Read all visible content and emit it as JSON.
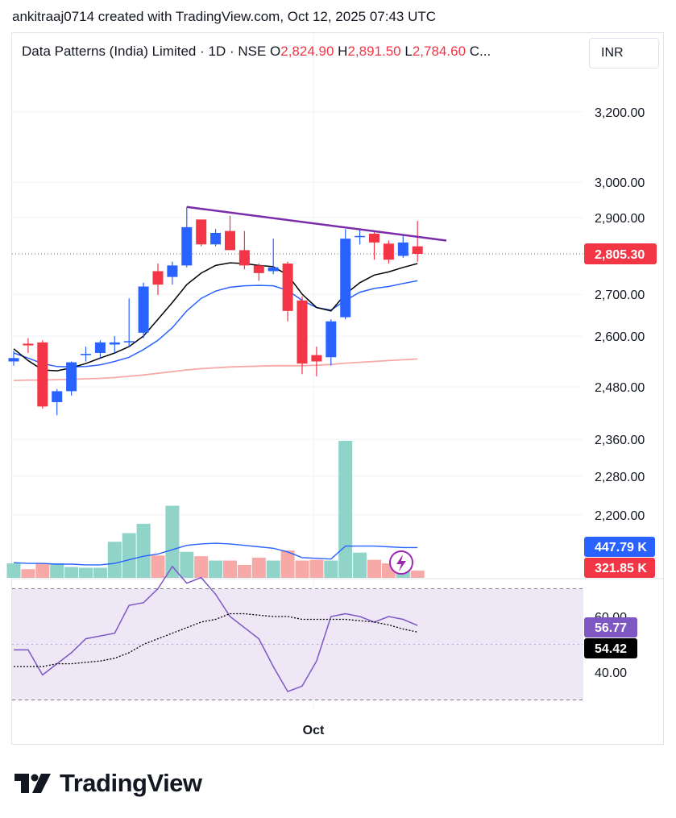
{
  "header": {
    "credit": "ankitraaj0714 created with TradingView.com, Oct 12, 2025 07:43 UTC"
  },
  "legend": {
    "symbol": "Data Patterns (India) Limited · 1D · NSE",
    "o_label": "O",
    "o_value": "2,824.90",
    "h_label": "H",
    "h_value": "2,891.50",
    "l_label": "L",
    "l_value": "2,784.60",
    "c_label": "C..."
  },
  "currency": "INR",
  "brand": {
    "name": "TradingView",
    "logo_icon": "tradingview-logo-icon"
  },
  "colors": {
    "up": "#2962ff",
    "down": "#f23645",
    "ema_short": "#000000",
    "ema_mid": "#2962ff",
    "ema_long": "#f7a9a7",
    "trendline": "#7b2ca8",
    "vol_up": "#8fd3c9",
    "vol_down": "#f7a9a7",
    "vol_ma": "#2962ff",
    "rsi": "#7e57c2",
    "rsi_ma": "#000000",
    "rsi_band": "#ede7f6"
  },
  "chart_data": [
    {
      "type": "candlestick",
      "x_label": "Oct",
      "price_ticks": [
        3200,
        3000,
        2900,
        2700,
        2600,
        2480,
        2360,
        2280,
        2200
      ],
      "price_tick_labels": [
        "3,200.00",
        "3,000.00",
        "2,900.00",
        "2,700.00",
        "2,600.00",
        "2,480.00",
        "2,360.00",
        "2,280.00",
        "2,200.00"
      ],
      "last_price": 2805.3,
      "last_price_label": "2,805.30",
      "candles": [
        {
          "o": 2540,
          "h": 2565,
          "l": 2530,
          "c": 2548
        },
        {
          "o": 2582,
          "h": 2595,
          "l": 2560,
          "c": 2578
        },
        {
          "o": 2585,
          "h": 2590,
          "l": 2430,
          "c": 2435
        },
        {
          "o": 2445,
          "h": 2475,
          "l": 2415,
          "c": 2470
        },
        {
          "o": 2470,
          "h": 2540,
          "l": 2460,
          "c": 2538
        },
        {
          "o": 2555,
          "h": 2575,
          "l": 2540,
          "c": 2558
        },
        {
          "o": 2560,
          "h": 2590,
          "l": 2548,
          "c": 2585
        },
        {
          "o": 2580,
          "h": 2600,
          "l": 2560,
          "c": 2585
        },
        {
          "o": 2585,
          "h": 2690,
          "l": 2575,
          "c": 2588
        },
        {
          "o": 2608,
          "h": 2730,
          "l": 2595,
          "c": 2720
        },
        {
          "o": 2760,
          "h": 2780,
          "l": 2698,
          "c": 2725
        },
        {
          "o": 2745,
          "h": 2785,
          "l": 2725,
          "c": 2775
        },
        {
          "o": 2775,
          "h": 2930,
          "l": 2770,
          "c": 2875
        },
        {
          "o": 2895,
          "h": 2895,
          "l": 2825,
          "c": 2830
        },
        {
          "o": 2830,
          "h": 2870,
          "l": 2825,
          "c": 2860
        },
        {
          "o": 2865,
          "h": 2905,
          "l": 2820,
          "c": 2815
        },
        {
          "o": 2815,
          "h": 2865,
          "l": 2765,
          "c": 2775
        },
        {
          "o": 2775,
          "h": 2780,
          "l": 2735,
          "c": 2755
        },
        {
          "o": 2760,
          "h": 2845,
          "l": 2752,
          "c": 2770
        },
        {
          "o": 2780,
          "h": 2785,
          "l": 2635,
          "c": 2660
        },
        {
          "o": 2685,
          "h": 2695,
          "l": 2510,
          "c": 2535
        },
        {
          "o": 2555,
          "h": 2575,
          "l": 2505,
          "c": 2540
        },
        {
          "o": 2550,
          "h": 2640,
          "l": 2530,
          "c": 2635
        },
        {
          "o": 2645,
          "h": 2870,
          "l": 2640,
          "c": 2845
        },
        {
          "o": 2850,
          "h": 2870,
          "l": 2830,
          "c": 2852
        },
        {
          "o": 2858,
          "h": 2865,
          "l": 2790,
          "c": 2835
        },
        {
          "o": 2832,
          "h": 2840,
          "l": 2780,
          "c": 2790
        },
        {
          "o": 2800,
          "h": 2855,
          "l": 2795,
          "c": 2835
        },
        {
          "o": 2824.9,
          "h": 2891.5,
          "l": 2784.6,
          "c": 2805.3
        }
      ],
      "ema_short": [
        2570,
        2542,
        2520,
        2518,
        2525,
        2535,
        2548,
        2560,
        2575,
        2600,
        2640,
        2680,
        2725,
        2755,
        2775,
        2782,
        2780,
        2775,
        2772,
        2750,
        2700,
        2668,
        2660,
        2700,
        2730,
        2750,
        2758,
        2770,
        2780
      ],
      "ema_mid": [
        2560,
        2548,
        2535,
        2528,
        2527,
        2528,
        2532,
        2540,
        2550,
        2568,
        2590,
        2620,
        2660,
        2690,
        2708,
        2718,
        2722,
        2723,
        2722,
        2710,
        2685,
        2668,
        2662,
        2685,
        2705,
        2715,
        2720,
        2728,
        2735
      ],
      "ema_long": [
        2495,
        2496,
        2496,
        2497,
        2498,
        2499,
        2500,
        2502,
        2505,
        2508,
        2512,
        2516,
        2520,
        2523,
        2525,
        2527,
        2528,
        2529,
        2530,
        2530,
        2530,
        2531,
        2533,
        2536,
        2538,
        2540,
        2542,
        2544,
        2546
      ],
      "trendline": [
        {
          "bar": 12,
          "price": 2930
        },
        {
          "bar": 30,
          "price": 2840
        }
      ]
    },
    {
      "type": "bar",
      "name": "Volume",
      "values": [
        0.2,
        0.12,
        0.2,
        0.2,
        0.15,
        0.14,
        0.14,
        0.5,
        0.62,
        0.75,
        0.31,
        1.0,
        0.36,
        0.3,
        0.24,
        0.24,
        0.18,
        0.28,
        0.24,
        0.38,
        0.24,
        0.25,
        0.24,
        1.9,
        0.35,
        0.25,
        0.2,
        0.2,
        0.1
      ],
      "unit": "relative",
      "ma": [
        0.21,
        0.2,
        0.2,
        0.19,
        0.19,
        0.18,
        0.18,
        0.2,
        0.25,
        0.3,
        0.33,
        0.39,
        0.45,
        0.47,
        0.48,
        0.47,
        0.45,
        0.43,
        0.41,
        0.36,
        0.28,
        0.27,
        0.26,
        0.44,
        0.44,
        0.44,
        0.43,
        0.42,
        0.42
      ],
      "ma_label": "447.79 K",
      "last_label": "321.85 K"
    },
    {
      "type": "line",
      "name": "RSI",
      "ticks": [
        60,
        40
      ],
      "tick_labels": [
        "60.00",
        "40.00"
      ],
      "band": [
        30,
        70
      ],
      "rsi": [
        48,
        48,
        39,
        43,
        47,
        52,
        53,
        54,
        64,
        65,
        70,
        78,
        72,
        74,
        68,
        60,
        56,
        52,
        42,
        33,
        35,
        44,
        60,
        61,
        60,
        58,
        60,
        59,
        56.77
      ],
      "rsi_ma": [
        42,
        42,
        42,
        43,
        43,
        43.5,
        44,
        45,
        47,
        50,
        52,
        54,
        56,
        58,
        59,
        61,
        61,
        60.5,
        60,
        60,
        59,
        59,
        59,
        59,
        58.5,
        58,
        57,
        55.5,
        54.42
      ],
      "rsi_label": "56.77",
      "rsi_ma_label": "54.42"
    }
  ]
}
